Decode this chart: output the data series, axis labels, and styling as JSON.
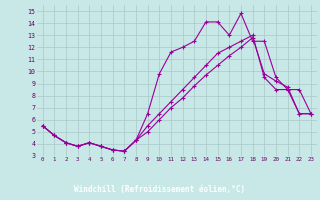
{
  "xlabel": "Windchill (Refroidissement éolien,°C)",
  "bg_color": "#c8e8e8",
  "line_color": "#990099",
  "grid_color": "#aac8c8",
  "bar_color": "#660099",
  "xlim": [
    -0.5,
    23.5
  ],
  "ylim": [
    3,
    15.5
  ],
  "xticks": [
    0,
    1,
    2,
    3,
    4,
    5,
    6,
    7,
    8,
    9,
    10,
    11,
    12,
    13,
    14,
    15,
    16,
    17,
    18,
    19,
    20,
    21,
    22,
    23
  ],
  "yticks": [
    3,
    4,
    5,
    6,
    7,
    8,
    9,
    10,
    11,
    12,
    13,
    14,
    15
  ],
  "line1_x": [
    0,
    1,
    2,
    3,
    4,
    5,
    6,
    7,
    8,
    9,
    10,
    11,
    12,
    13,
    14,
    15,
    16,
    17,
    18,
    19,
    20,
    21,
    22,
    23
  ],
  "line1_y": [
    5.5,
    4.7,
    4.1,
    3.8,
    4.1,
    3.8,
    3.5,
    3.4,
    4.3,
    5.5,
    6.5,
    7.5,
    8.5,
    9.5,
    10.5,
    11.5,
    12.0,
    12.5,
    13.0,
    9.5,
    8.5,
    8.5,
    6.5,
    6.5
  ],
  "line2_x": [
    0,
    1,
    2,
    3,
    4,
    5,
    6,
    7,
    8,
    9,
    10,
    11,
    12,
    13,
    14,
    15,
    16,
    17,
    18,
    19,
    20,
    21,
    22,
    23
  ],
  "line2_y": [
    5.5,
    4.7,
    4.1,
    3.8,
    4.1,
    3.8,
    3.5,
    3.4,
    4.3,
    6.5,
    9.8,
    11.6,
    12.0,
    12.5,
    14.1,
    14.1,
    13.0,
    14.8,
    12.5,
    12.5,
    9.5,
    8.5,
    8.5,
    6.5
  ],
  "line3_x": [
    0,
    1,
    2,
    3,
    4,
    5,
    6,
    7,
    8,
    9,
    10,
    11,
    12,
    13,
    14,
    15,
    16,
    17,
    18,
    19,
    20,
    21,
    22,
    23
  ],
  "line3_y": [
    5.5,
    4.7,
    4.1,
    3.8,
    4.1,
    3.8,
    3.5,
    3.4,
    4.3,
    5.0,
    6.0,
    7.0,
    7.8,
    8.8,
    9.7,
    10.5,
    11.3,
    12.0,
    12.8,
    9.8,
    9.2,
    8.7,
    6.5,
    6.5
  ]
}
